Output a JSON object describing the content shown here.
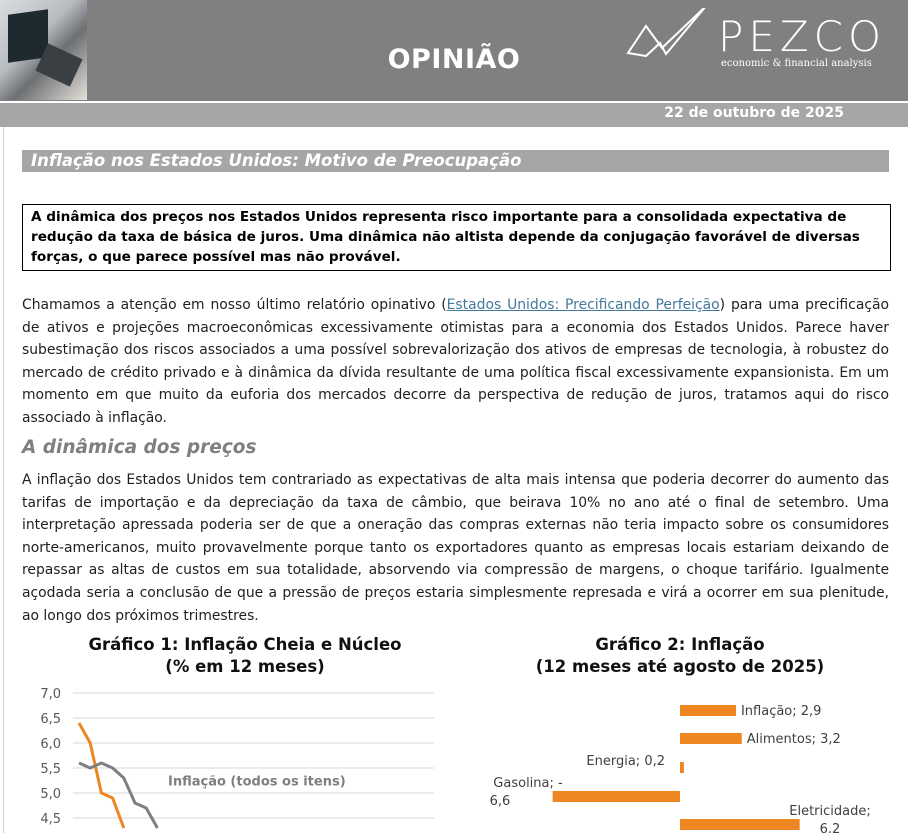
{
  "header": {
    "section": "OPINIÃO",
    "logo": {
      "name": "PEZCO",
      "tagline": "economic & financial analysis"
    },
    "date": "22 de outubro de 2025"
  },
  "article": {
    "title": "Inflação nos Estados Unidos: Motivo de Preocupação",
    "summary": "A dinâmica dos preços nos Estados Unidos representa risco importante para a consolidada expectativa de redução da taxa de básica de juros. Uma dinâmica não altista depende da conjugação favorável de diversas forças, o que parece possível mas não provável.",
    "p1_before": "Chamamos a atenção em nosso último relatório opinativo (",
    "p1_link": "Estados Unidos: Precificando Perfeição",
    "p1_after": ") para uma precificação de ativos e projeções macroeconômicas excessivamente otimistas para a economia dos Estados Unidos. Parece haver subestimação dos riscos associados a uma possível sobrevalorização dos ativos de empresas de tecnologia, à robustez do mercado de crédito privado e à dinâmica da dívida resultante de uma política fiscal excessivamente expansionista. Em um momento em que muito da euforia dos mercados decorre da perspectiva de redução de juros, tratamos aqui do risco associado à inflação.",
    "section_heading": "A dinâmica dos preços",
    "p2": "A inflação dos Estados Unidos tem contrariado as expectativas de alta mais intensa que poderia decorrer do aumento das tarifas de importação e da depreciação da taxa de câmbio, que beirava 10% no ano até o final de setembro. Uma interpretação apressada poderia ser de que a oneração das compras externas não teria impacto sobre os consumidores norte-americanos, muito provavelmente porque tanto os exportadores quanto as empresas locais estariam deixando de repassar as altas de custos em sua totalidade, absorvendo via compressão de margens, o choque tarifário. Igualmente açodada seria a conclusão de que a pressão de preços estaria simplesmente represada e virá a ocorrer em sua plenitude, ao longo dos próximos trimestres."
  },
  "colors": {
    "header": "#808080",
    "bar": "#a6a6a6",
    "orange": "#ee8722",
    "gray_line": "#7f7f7f"
  },
  "chart_data": [
    {
      "type": "line",
      "title": "Gráfico 1: Inflação Cheia e Núcleo",
      "subtitle": "(% em 12 meses)",
      "y_ticks": [
        "7,0",
        "6,5",
        "6,0",
        "5,5",
        "5,0",
        "4,5"
      ],
      "ylim_visible": [
        4.5,
        7.0
      ],
      "grid": true,
      "annotation": "Inflação (todos os itens)",
      "series": [
        {
          "color": "#ee8722",
          "values": [
            6.4,
            6.0,
            5.0,
            4.9,
            4.3
          ]
        },
        {
          "name": "Inflação (todos os itens)",
          "color": "#7f7f7f",
          "values": [
            5.6,
            5.5,
            5.6,
            5.5,
            5.3,
            4.8,
            4.7,
            4.3
          ]
        }
      ]
    },
    {
      "type": "bar",
      "orientation": "horizontal",
      "title": "Gráfico 2: Inflação",
      "subtitle": "(12 meses até agosto de 2025)",
      "color": "#ee8722",
      "categories": [
        "Inflação",
        "Alimentos",
        "Energia",
        "Gasolina",
        "Eletricidade"
      ],
      "values": [
        2.9,
        3.2,
        0.2,
        -6.6,
        6.2
      ],
      "labels": [
        "Inflação; 2,9",
        "Alimentos; 3,2",
        "Energia; 0,2",
        "Gasolina; -6,6",
        "Eletricidade; 6,2"
      ]
    }
  ]
}
